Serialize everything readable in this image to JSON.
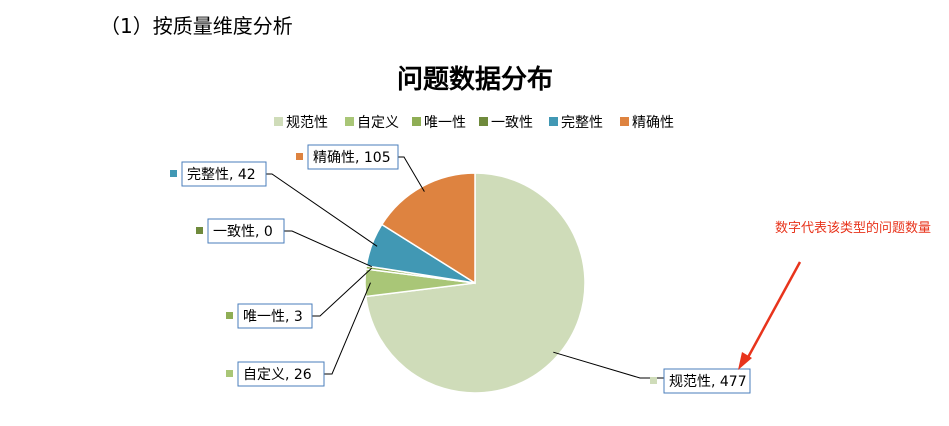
{
  "section_heading": "（1）按质量维度分析",
  "annotation": "数字代表该类型的问题数量",
  "colors": {
    "annotation": "#e8341c",
    "leader": "#000000",
    "label_border": "#4a7ebb"
  },
  "chart_data": {
    "type": "pie",
    "title": "问题数据分布",
    "legend_position": "top",
    "categories": [
      "规范性",
      "自定义",
      "唯一性",
      "一致性",
      "完整性",
      "精确性"
    ],
    "values": [
      477,
      26,
      3,
      0,
      42,
      105
    ],
    "colors": [
      "#cfdcb9",
      "#a9c677",
      "#8fae55",
      "#6f8a3c",
      "#4198b4",
      "#de8340"
    ],
    "data_labels": [
      "规范性, 477",
      "自定义, 26",
      "唯一性, 3",
      "一致性, 0",
      "完整性, 42",
      "精确性, 105"
    ]
  }
}
